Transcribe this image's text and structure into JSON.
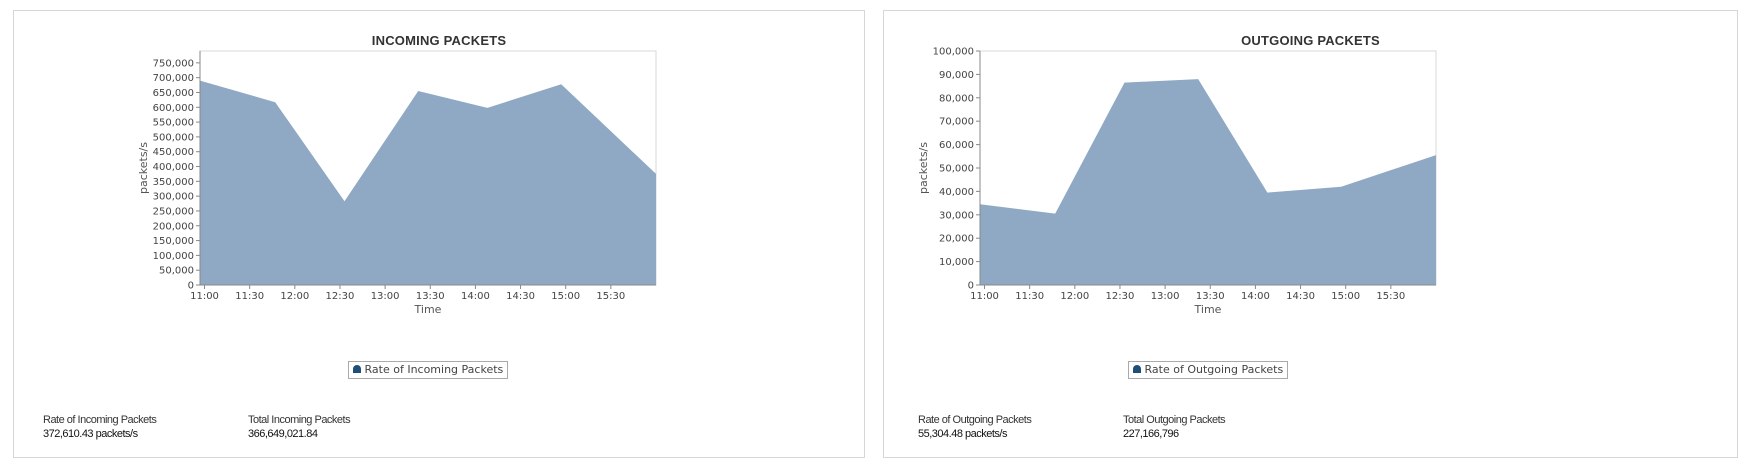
{
  "colors": {
    "area": "#8fa8c4",
    "legend_marker": "#1f4e79",
    "plot_border": "#d8d8d8"
  },
  "incoming": {
    "title": "INCOMING PACKETS",
    "legend": "Rate of Incoming Packets",
    "stat_rate_label": "Rate of Incoming Packets",
    "stat_rate_value": "372,610.43 packets/s",
    "stat_total_label": "Total Incoming Packets",
    "stat_total_value": "366,649,021.84"
  },
  "outgoing": {
    "title": "OUTGOING PACKETS",
    "legend": "Rate of Outgoing Packets",
    "stat_rate_label": "Rate of Outgoing Packets",
    "stat_rate_value": "55,304.48 packets/s",
    "stat_total_label": "Total Outgoing Packets",
    "stat_total_value": "227,166,796"
  },
  "chart_data": [
    {
      "type": "area",
      "title": "INCOMING PACKETS",
      "xlabel": "Time",
      "ylabel": "packets/s",
      "x_ticks": [
        "11:00",
        "11:30",
        "12:00",
        "12:30",
        "13:00",
        "13:30",
        "14:00",
        "14:30",
        "15:00",
        "15:30"
      ],
      "y_ticks": [
        "0",
        "50,000",
        "100,000",
        "150,000",
        "200,000",
        "250,000",
        "300,000",
        "350,000",
        "400,000",
        "450,000",
        "500,000",
        "550,000",
        "600,000",
        "650,000",
        "700,000",
        "750,000"
      ],
      "xlim": [
        "10:57",
        "16:00"
      ],
      "ylim": [
        0,
        790000
      ],
      "grid": false,
      "legend_position": "bottom-center",
      "series": [
        {
          "name": "Rate of Incoming Packets",
          "points": [
            {
              "x": "10:57",
              "y": 690000
            },
            {
              "x": "11:47",
              "y": 617000
            },
            {
              "x": "12:33",
              "y": 283000
            },
            {
              "x": "13:22",
              "y": 655000
            },
            {
              "x": "14:08",
              "y": 598000
            },
            {
              "x": "14:57",
              "y": 678000
            },
            {
              "x": "16:00",
              "y": 375000
            }
          ]
        }
      ]
    },
    {
      "type": "area",
      "title": "OUTGOING PACKETS",
      "xlabel": "Time",
      "ylabel": "packets/s",
      "x_ticks": [
        "11:00",
        "11:30",
        "12:00",
        "12:30",
        "13:00",
        "13:30",
        "14:00",
        "14:30",
        "15:00",
        "15:30"
      ],
      "y_ticks": [
        "0",
        "10,000",
        "20,000",
        "30,000",
        "40,000",
        "50,000",
        "60,000",
        "70,000",
        "80,000",
        "90,000",
        "100,000"
      ],
      "xlim": [
        "10:57",
        "16:00"
      ],
      "ylim": [
        0,
        100000
      ],
      "grid": false,
      "legend_position": "bottom-center",
      "series": [
        {
          "name": "Rate of Outgoing Packets",
          "points": [
            {
              "x": "10:57",
              "y": 34500
            },
            {
              "x": "11:47",
              "y": 30500
            },
            {
              "x": "12:33",
              "y": 86500
            },
            {
              "x": "13:22",
              "y": 88000
            },
            {
              "x": "14:08",
              "y": 39500
            },
            {
              "x": "14:57",
              "y": 42000
            },
            {
              "x": "16:00",
              "y": 55500
            }
          ]
        }
      ]
    }
  ]
}
